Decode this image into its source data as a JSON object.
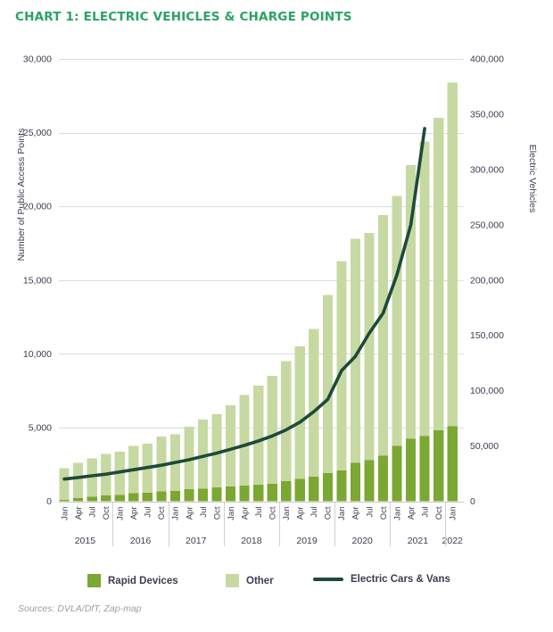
{
  "title": "CHART 1: ELECTRIC VEHICLES & CHARGE POINTS",
  "source": "Sources: DVLA/DfT, Zap-map",
  "colors": {
    "title_green": "#2aa362",
    "rapid": "#7ba733",
    "other": "#c7d9a2",
    "line": "#1d4a3a",
    "text": "#3c3c54",
    "grid": "#dcdcdc",
    "baseline": "#c8c8c8",
    "separator": "#d0d0d0",
    "source_gray": "#9e9e9e"
  },
  "legend": {
    "items": [
      {
        "label": "Rapid Devices",
        "swatch": "square",
        "color": "#7ba733"
      },
      {
        "label": "Other",
        "swatch": "square",
        "color": "#c7d9a2"
      },
      {
        "label": "Electric Cars & Vans",
        "swatch": "line",
        "color": "#1d4a3a"
      }
    ]
  },
  "chart_data": {
    "type": "bar+line",
    "title": "CHART 1: ELECTRIC VEHICLES & CHARGE POINTS",
    "x_labels": [
      "Jan",
      "Apr",
      "Jul",
      "Oct",
      "Jan",
      "Apr",
      "Jul",
      "Oct",
      "Jan",
      "Apr",
      "Jul",
      "Oct",
      "Jan",
      "Apr",
      "Jul",
      "Oct",
      "Jan",
      "Apr",
      "Jul",
      "Oct",
      "Jan",
      "Apr",
      "Jul",
      "Oct",
      "Jan",
      "Apr",
      "Jul",
      "Oct",
      "Jan"
    ],
    "year_groups": [
      {
        "label": "2015",
        "bars": 4
      },
      {
        "label": "2016",
        "bars": 4
      },
      {
        "label": "2017",
        "bars": 4
      },
      {
        "label": "2018",
        "bars": 4
      },
      {
        "label": "2019",
        "bars": 4
      },
      {
        "label": "2020",
        "bars": 4
      },
      {
        "label": "2021",
        "bars": 4
      },
      {
        "label": "2022",
        "bars": 1
      }
    ],
    "series": [
      {
        "name": "Rapid Devices",
        "color": "#7ba733",
        "stack": "devices",
        "values": [
          100,
          200,
          290,
          390,
          420,
          545,
          565,
          665,
          710,
          805,
          845,
          925,
          1010,
          1060,
          1110,
          1170,
          1370,
          1510,
          1680,
          1920,
          2100,
          2600,
          2800,
          3100,
          3750,
          4250,
          4430,
          4800,
          5100
        ]
      },
      {
        "name": "Other",
        "color": "#c7d9a2",
        "stack": "devices",
        "values": [
          2150,
          2400,
          2610,
          2810,
          2930,
          3205,
          3335,
          3735,
          3840,
          4245,
          4705,
          4975,
          5490,
          6140,
          6740,
          7330,
          8130,
          8990,
          10020,
          12080,
          14200,
          15200,
          15400,
          16300,
          16950,
          18550,
          19970,
          21200,
          23300
        ]
      }
    ],
    "line_series": {
      "name": "Electric Cars & Vans",
      "color": "#1d4a3a",
      "axis": "right",
      "values": [
        20000,
        21500,
        23000,
        24500,
        26500,
        28500,
        30500,
        32500,
        35000,
        37500,
        40500,
        43500,
        47000,
        50500,
        54500,
        59000,
        64500,
        71500,
        81000,
        92000,
        118000,
        131000,
        152000,
        170000,
        205000,
        250000,
        337000,
        null,
        null
      ]
    },
    "left_axis": {
      "label": "Number of Public Access Points",
      "min": 0,
      "max": 30000,
      "step": 5000,
      "tick_labels": [
        "0",
        "5,000",
        "10,000",
        "15,000",
        "20,000",
        "25,000",
        "30,000"
      ]
    },
    "right_axis": {
      "label": "Electric Vehicles",
      "min": 0,
      "max": 400000,
      "step": 50000,
      "tick_labels": [
        "0",
        "50,000",
        "100,000",
        "150,000",
        "200,000",
        "250,000",
        "300,000",
        "350,000",
        "400,000"
      ]
    },
    "grid": true,
    "legend_position": "bottom"
  }
}
